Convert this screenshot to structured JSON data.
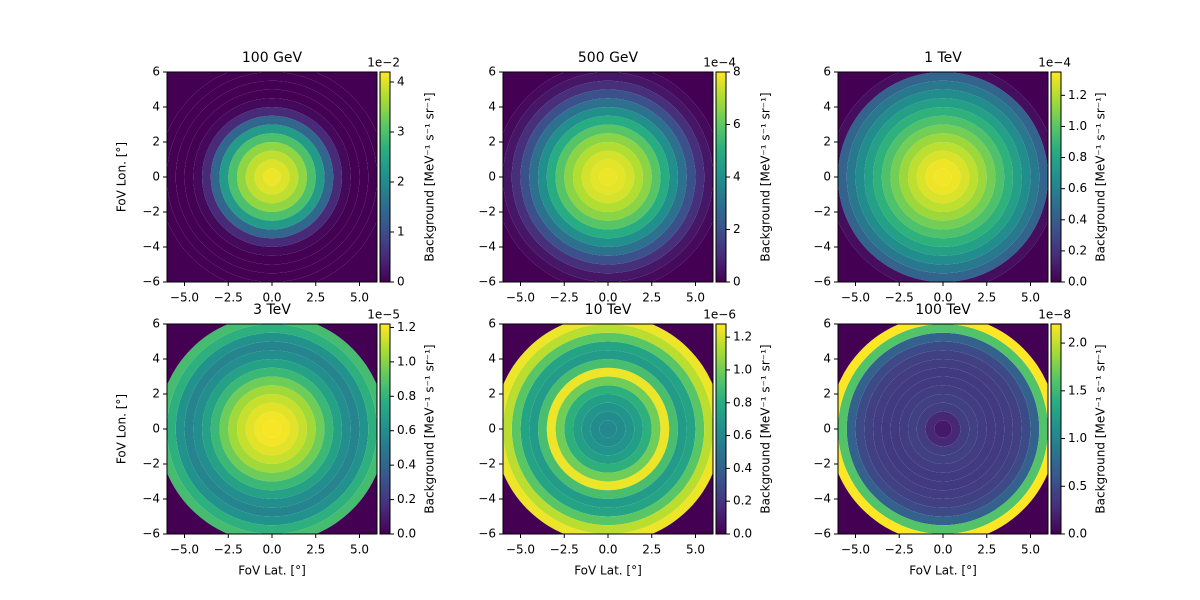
{
  "chart_data": [
    {
      "type": "heatmap",
      "title": "100 GeV",
      "colormap": "viridis",
      "ylabel": "FoV Lon. [°]",
      "colorbar_label": "Background [MeV⁻¹ s⁻¹ sr⁻¹]",
      "colorbar_offset": "1e−2",
      "radii": [
        0,
        0.5,
        1,
        1.5,
        2,
        2.5,
        3,
        3.5,
        4,
        4.5,
        5,
        5.5,
        6,
        6.5,
        8.5
      ],
      "values": [
        4.1,
        4.0,
        3.8,
        3.5,
        3.0,
        2.3,
        1.4,
        0.5,
        0.1,
        0,
        0,
        0,
        0,
        0
      ],
      "vlim": [
        0,
        4.2
      ],
      "vticks": [
        0,
        1,
        2,
        3,
        4
      ],
      "xlim": [
        -6,
        6
      ],
      "ylim": [
        -6,
        6
      ],
      "xticks": [
        {
          "value": -5,
          "label": "−5.0"
        },
        {
          "value": -2.5,
          "label": "−2.5"
        },
        {
          "value": 0,
          "label": "0.0"
        },
        {
          "value": 2.5,
          "label": "2.5"
        },
        {
          "value": 5,
          "label": "5.0"
        }
      ],
      "yticks": [
        {
          "value": -6,
          "label": "−6"
        },
        {
          "value": -4,
          "label": "−4"
        },
        {
          "value": -2,
          "label": "−2"
        },
        0,
        2,
        4,
        6
      ]
    },
    {
      "type": "heatmap",
      "title": "500 GeV",
      "colormap": "viridis",
      "colorbar_label": "Background [MeV⁻¹ s⁻¹ sr⁻¹]",
      "colorbar_offset": "1e−4",
      "radii": [
        0,
        0.5,
        1,
        1.5,
        2,
        2.5,
        3,
        3.5,
        4,
        4.5,
        5,
        5.5,
        6,
        6.5,
        8.5
      ],
      "values": [
        7.8,
        7.7,
        7.5,
        7.1,
        6.6,
        5.9,
        5.0,
        4.0,
        3.0,
        2.0,
        1.1,
        0.5,
        0.2,
        0
      ],
      "vlim": [
        0,
        8
      ],
      "vticks": [
        0,
        2,
        4,
        6,
        8
      ],
      "xlim": [
        -6,
        6
      ],
      "ylim": [
        -6,
        6
      ],
      "xticks": [
        {
          "value": -5,
          "label": "−5.0"
        },
        {
          "value": -2.5,
          "label": "−2.5"
        },
        {
          "value": 0,
          "label": "0.0"
        },
        {
          "value": 2.5,
          "label": "2.5"
        },
        {
          "value": 5,
          "label": "5.0"
        }
      ],
      "yticks": [
        {
          "value": -6,
          "label": "−6"
        },
        {
          "value": -4,
          "label": "−4"
        },
        {
          "value": -2,
          "label": "−2"
        },
        0,
        2,
        4,
        6
      ]
    },
    {
      "type": "heatmap",
      "title": "1 TeV",
      "colormap": "viridis",
      "colorbar_label": "Background [MeV⁻¹ s⁻¹ sr⁻¹]",
      "colorbar_offset": "1e−4",
      "radii": [
        0,
        0.5,
        1,
        1.5,
        2,
        2.5,
        3,
        3.5,
        4,
        4.5,
        5,
        5.5,
        6,
        6.5,
        8.5
      ],
      "values": [
        1.33,
        1.32,
        1.28,
        1.22,
        1.15,
        1.06,
        0.97,
        0.87,
        0.77,
        0.66,
        0.55,
        0.44,
        0.05,
        0
      ],
      "vlim": [
        0,
        1.35
      ],
      "vticks": [
        {
          "value": 0,
          "label": "0.0"
        },
        {
          "value": 0.2,
          "label": "0.2"
        },
        {
          "value": 0.4,
          "label": "0.4"
        },
        {
          "value": 0.6,
          "label": "0.6"
        },
        {
          "value": 0.8,
          "label": "0.8"
        },
        {
          "value": 1,
          "label": "1.0"
        },
        {
          "value": 1.2,
          "label": "1.2"
        }
      ],
      "xlim": [
        -6,
        6
      ],
      "ylim": [
        -6,
        6
      ],
      "xticks": [
        {
          "value": -5,
          "label": "−5.0"
        },
        {
          "value": -2.5,
          "label": "−2.5"
        },
        {
          "value": 0,
          "label": "0.0"
        },
        {
          "value": 2.5,
          "label": "2.5"
        },
        {
          "value": 5,
          "label": "5.0"
        }
      ],
      "yticks": [
        {
          "value": -6,
          "label": "−6"
        },
        {
          "value": -4,
          "label": "−4"
        },
        {
          "value": -2,
          "label": "−2"
        },
        0,
        2,
        4,
        6
      ]
    },
    {
      "type": "heatmap",
      "title": "3 TeV",
      "colormap": "viridis",
      "xlabel": "FoV Lat. [°]",
      "ylabel": "FoV Lon. [°]",
      "colorbar_label": "Background [MeV⁻¹ s⁻¹ sr⁻¹]",
      "colorbar_offset": "1e−5",
      "radii": [
        0,
        0.5,
        1,
        1.5,
        2,
        2.5,
        3,
        3.5,
        4,
        4.5,
        5,
        5.5,
        6,
        6.5,
        8.5
      ],
      "values": [
        1.21,
        1.2,
        1.17,
        1.12,
        1.05,
        0.95,
        0.82,
        0.7,
        0.6,
        0.55,
        0.62,
        0.78,
        0.85,
        0
      ],
      "vlim": [
        0,
        1.22
      ],
      "vticks": [
        {
          "value": 0,
          "label": "0.0"
        },
        {
          "value": 0.2,
          "label": "0.2"
        },
        {
          "value": 0.4,
          "label": "0.4"
        },
        {
          "value": 0.6,
          "label": "0.6"
        },
        {
          "value": 0.8,
          "label": "0.8"
        },
        {
          "value": 1,
          "label": "1.0"
        },
        {
          "value": 1.2,
          "label": "1.2"
        }
      ],
      "xlim": [
        -6,
        6
      ],
      "ylim": [
        -6,
        6
      ],
      "xticks": [
        {
          "value": -5,
          "label": "−5.0"
        },
        {
          "value": -2.5,
          "label": "−2.5"
        },
        {
          "value": 0,
          "label": "0.0"
        },
        {
          "value": 2.5,
          "label": "2.5"
        },
        {
          "value": 5,
          "label": "5.0"
        }
      ],
      "yticks": [
        {
          "value": -6,
          "label": "−6"
        },
        {
          "value": -4,
          "label": "−4"
        },
        {
          "value": -2,
          "label": "−2"
        },
        0,
        2,
        4,
        6
      ]
    },
    {
      "type": "heatmap",
      "title": "10 TeV",
      "colormap": "viridis",
      "xlabel": "FoV Lat. [°]",
      "colorbar_label": "Background [MeV⁻¹ s⁻¹ sr⁻¹]",
      "colorbar_offset": "1e−6",
      "radii": [
        0,
        0.5,
        1,
        1.5,
        2,
        2.5,
        3,
        3.5,
        4,
        4.5,
        5,
        5.5,
        6,
        6.5,
        8.5
      ],
      "values": [
        0.6,
        0.62,
        0.66,
        0.72,
        0.82,
        1.0,
        1.25,
        0.9,
        0.7,
        0.75,
        0.95,
        1.15,
        1.25,
        0
      ],
      "vlim": [
        0,
        1.28
      ],
      "vticks": [
        {
          "value": 0,
          "label": "0.0"
        },
        {
          "value": 0.2,
          "label": "0.2"
        },
        {
          "value": 0.4,
          "label": "0.4"
        },
        {
          "value": 0.6,
          "label": "0.6"
        },
        {
          "value": 0.8,
          "label": "0.8"
        },
        {
          "value": 1,
          "label": "1.0"
        },
        {
          "value": 1.2,
          "label": "1.2"
        }
      ],
      "xlim": [
        -6,
        6
      ],
      "ylim": [
        -6,
        6
      ],
      "xticks": [
        {
          "value": -5,
          "label": "−5.0"
        },
        {
          "value": -2.5,
          "label": "−2.5"
        },
        {
          "value": 0,
          "label": "0.0"
        },
        {
          "value": 2.5,
          "label": "2.5"
        },
        {
          "value": 5,
          "label": "5.0"
        }
      ],
      "yticks": [
        {
          "value": -6,
          "label": "−6"
        },
        {
          "value": -4,
          "label": "−4"
        },
        {
          "value": -2,
          "label": "−2"
        },
        0,
        2,
        4,
        6
      ]
    },
    {
      "type": "heatmap",
      "title": "100 TeV",
      "colormap": "viridis",
      "xlabel": "FoV Lat. [°]",
      "colorbar_label": "Background [MeV⁻¹ s⁻¹ sr⁻¹]",
      "colorbar_offset": "1e−8",
      "radii": [
        0,
        0.5,
        1,
        1.5,
        2,
        2.5,
        3,
        3.5,
        4,
        4.5,
        5,
        5.5,
        6,
        6.5,
        8.5
      ],
      "values": [
        0.15,
        0.25,
        0.4,
        0.42,
        0.4,
        0.38,
        0.38,
        0.4,
        0.42,
        0.5,
        0.7,
        1.6,
        2.2,
        0
      ],
      "vlim": [
        0,
        2.2
      ],
      "vticks": [
        {
          "value": 0,
          "label": "0.0"
        },
        {
          "value": 0.5,
          "label": "0.5"
        },
        {
          "value": 1,
          "label": "1.0"
        },
        {
          "value": 1.5,
          "label": "1.5"
        },
        {
          "value": 2,
          "label": "2.0"
        }
      ],
      "xlim": [
        -6,
        6
      ],
      "ylim": [
        -6,
        6
      ],
      "xticks": [
        {
          "value": -5,
          "label": "−5.0"
        },
        {
          "value": -2.5,
          "label": "−2.5"
        },
        {
          "value": 0,
          "label": "0.0"
        },
        {
          "value": 2.5,
          "label": "2.5"
        },
        {
          "value": 5,
          "label": "5.0"
        }
      ],
      "yticks": [
        {
          "value": -6,
          "label": "−6"
        },
        {
          "value": -4,
          "label": "−4"
        },
        {
          "value": -2,
          "label": "−2"
        },
        0,
        2,
        4,
        6
      ]
    }
  ]
}
